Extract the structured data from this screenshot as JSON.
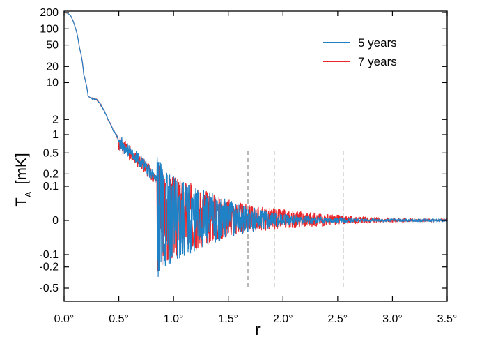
{
  "chart_data": {
    "type": "line",
    "title": "",
    "xlabel": "r",
    "ylabel": "T",
    "ylabel_sub": "A",
    "ylabel_unit": "[mK]",
    "xlim": [
      0.0,
      3.5
    ],
    "x_scale": "linear",
    "y_scale": "symmetric-log (log above 1 mK and below -0.1 mK, linear near zero)",
    "x_ticks": [
      0.0,
      0.5,
      1.0,
      1.5,
      2.0,
      2.5,
      3.0,
      3.5
    ],
    "x_tick_labels": [
      "0.0°",
      "0.5°",
      "1.0°",
      "1.5°",
      "2.0°",
      "2.5°",
      "3.0°",
      "3.5°"
    ],
    "y_ticks": [
      200,
      100,
      50,
      20,
      10,
      2,
      1,
      0.5,
      0.2,
      0.1,
      0,
      -0.1,
      -0.2,
      -0.5
    ],
    "y_tick_labels": [
      "200",
      "100",
      "50",
      "20",
      "10",
      "2",
      "1",
      "0.5",
      "0.2",
      "0.1",
      "0",
      "-0.1",
      "-0.2",
      "-0.5"
    ],
    "grid": false,
    "legend_position": "top-right",
    "reference_lines_x": [
      1.68,
      1.92,
      2.55
    ],
    "series": [
      {
        "name": "7 years",
        "color": "#e8262b",
        "x": [
          0.0,
          0.03,
          0.06,
          0.1,
          0.14,
          0.18,
          0.22,
          0.26,
          0.3,
          0.35,
          0.4,
          0.45,
          0.5,
          0.55,
          0.6,
          0.65,
          0.7,
          0.75,
          0.8,
          0.85,
          0.9,
          0.95,
          1.0,
          1.1,
          1.2,
          1.3,
          1.4,
          1.5,
          1.6,
          1.7,
          1.8,
          1.9,
          2.0,
          2.1,
          2.2,
          2.3,
          2.4,
          2.5,
          2.6,
          2.7,
          2.8,
          2.9,
          3.0,
          3.1,
          3.2,
          3.3,
          3.4,
          3.5
        ],
        "y": [
          200,
          195,
          175,
          110,
          45,
          14,
          5.5,
          5.0,
          4.8,
          3.4,
          2.0,
          1.2,
          0.8,
          0.65,
          0.5,
          0.42,
          0.35,
          0.28,
          0.2,
          0.14,
          0.1,
          0.08,
          0.07,
          0.055,
          0.045,
          0.035,
          0.028,
          0.022,
          0.018,
          0.015,
          0.013,
          0.012,
          0.01,
          0.009,
          0.008,
          0.007,
          0.006,
          0.005,
          0.004,
          0.003,
          0.003,
          0.002,
          0.002,
          0.002,
          0.001,
          0.001,
          0.001,
          0.001
        ]
      },
      {
        "name": "5 years",
        "color": "#1f82c6",
        "x": [
          0.0,
          0.03,
          0.06,
          0.1,
          0.14,
          0.18,
          0.22,
          0.26,
          0.3,
          0.35,
          0.4,
          0.45,
          0.5,
          0.55,
          0.6,
          0.65,
          0.7,
          0.75,
          0.8,
          0.85,
          0.9,
          0.95,
          1.0,
          1.1,
          1.2,
          1.3,
          1.4,
          1.5,
          1.6,
          1.7,
          1.8,
          1.9,
          2.0,
          2.1,
          2.2,
          2.3,
          2.4,
          2.5,
          2.6,
          2.7,
          2.8,
          2.9,
          3.0,
          3.1,
          3.2,
          3.3,
          3.4,
          3.5
        ],
        "y": [
          200,
          195,
          175,
          110,
          45,
          14,
          5.5,
          5.0,
          4.8,
          3.4,
          2.0,
          1.2,
          0.8,
          0.65,
          0.5,
          0.42,
          0.35,
          0.28,
          0.2,
          0.14,
          0.1,
          0.08,
          0.06,
          0.045,
          0.035,
          0.028,
          0.022,
          0.017,
          0.014,
          0.011,
          0.009,
          0.007,
          0.005,
          0.004,
          0.003,
          0.003,
          0.002,
          0.002,
          0.002,
          0.001,
          0.001,
          0.001,
          0.001,
          0.001,
          0.001,
          0.001,
          0.001,
          0.001
        ]
      }
    ]
  }
}
